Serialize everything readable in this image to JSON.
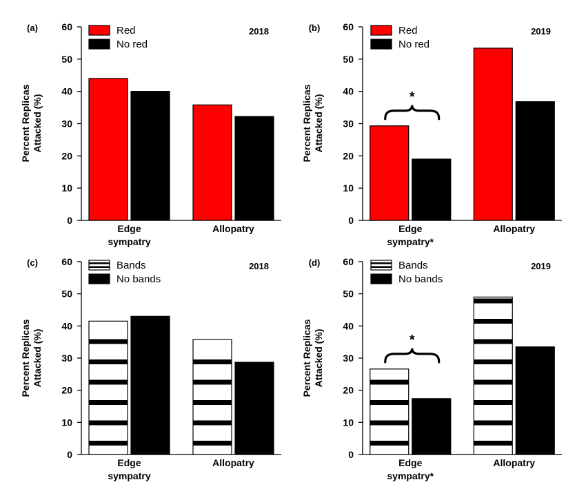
{
  "chart_data": [
    {
      "type": "bar",
      "panel": "(a)",
      "year": "2018",
      "ylabel_lines": [
        "Percent Replicas",
        "Attacked (%)"
      ],
      "ylim": [
        0,
        60
      ],
      "yticks": [
        0,
        10,
        20,
        30,
        40,
        50,
        60
      ],
      "categories": [
        [
          "Edge",
          "sympatry"
        ],
        [
          "Allopatry"
        ]
      ],
      "series": [
        {
          "name": "Red",
          "values": [
            44,
            35.8
          ],
          "fill": "#ff0000",
          "pattern": "solid"
        },
        {
          "name": "No red",
          "values": [
            40,
            32.2
          ],
          "fill": "#000000",
          "pattern": "solid"
        }
      ],
      "significance": []
    },
    {
      "type": "bar",
      "panel": "(b)",
      "year": "2019",
      "ylabel_lines": [
        "Percent Replicas",
        "Attacked (%)"
      ],
      "ylim": [
        0,
        60
      ],
      "yticks": [
        0,
        10,
        20,
        30,
        40,
        50,
        60
      ],
      "categories": [
        [
          "Edge",
          "sympatry*"
        ],
        [
          "Allopatry"
        ]
      ],
      "series": [
        {
          "name": "Red",
          "values": [
            29.3,
            53.4
          ],
          "fill": "#ff0000",
          "pattern": "solid"
        },
        {
          "name": "No red",
          "values": [
            19,
            36.8
          ],
          "fill": "#000000",
          "pattern": "solid"
        }
      ],
      "significance": [
        {
          "category_index": 0,
          "label": "*"
        }
      ]
    },
    {
      "type": "bar",
      "panel": "(c)",
      "year": "2018",
      "ylabel_lines": [
        "Percent Replicas",
        "Attacked (%)"
      ],
      "ylim": [
        0,
        60
      ],
      "yticks": [
        0,
        10,
        20,
        30,
        40,
        50,
        60
      ],
      "categories": [
        [
          "Edge",
          "sympatry"
        ],
        [
          "Allopatry"
        ]
      ],
      "series": [
        {
          "name": "Bands",
          "values": [
            41.5,
            35.8
          ],
          "fill": "#ffffff",
          "pattern": "bands"
        },
        {
          "name": "No bands",
          "values": [
            43,
            28.7
          ],
          "fill": "#000000",
          "pattern": "solid"
        }
      ],
      "significance": []
    },
    {
      "type": "bar",
      "panel": "(d)",
      "year": "2019",
      "ylabel_lines": [
        "Percent Replicas",
        "Attacked (%)"
      ],
      "ylim": [
        0,
        60
      ],
      "yticks": [
        0,
        10,
        20,
        30,
        40,
        50,
        60
      ],
      "categories": [
        [
          "Edge",
          "sympatry*"
        ],
        [
          "Allopatry"
        ]
      ],
      "series": [
        {
          "name": "Bands",
          "values": [
            26.6,
            49
          ],
          "fill": "#ffffff",
          "pattern": "bands"
        },
        {
          "name": "No bands",
          "values": [
            17.4,
            33.5
          ],
          "fill": "#000000",
          "pattern": "solid"
        }
      ],
      "significance": [
        {
          "category_index": 0,
          "label": "*"
        }
      ]
    }
  ]
}
